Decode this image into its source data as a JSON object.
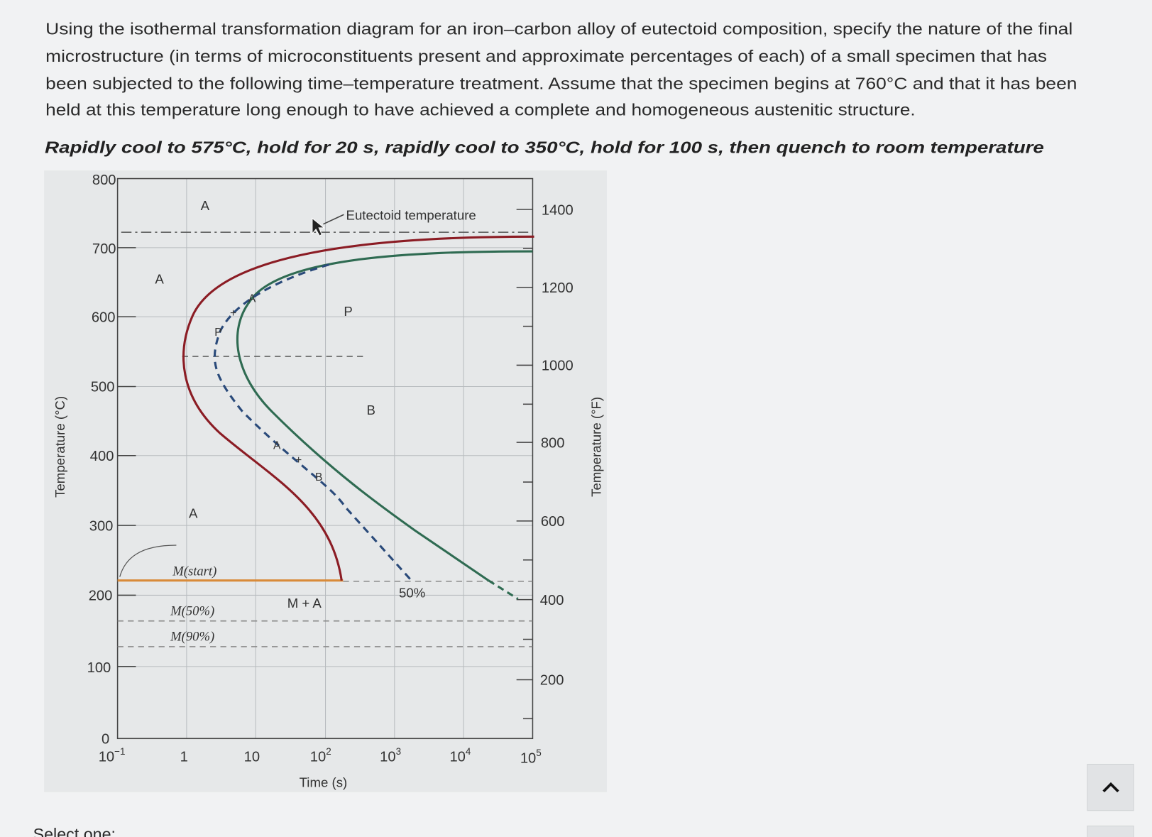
{
  "question_lines": [
    "Using the isothermal transformation diagram for an iron–carbon alloy of eutectoid composition, specify the nature of the final",
    "microstructure (in terms of microconstituents present and approximate percentages of each) of a small specimen that has",
    "been subjected to the following time–temperature treatment. Assume that the specimen begins at 760°C and that it has been",
    "held at this temperature long enough to have achieved a complete and homogeneous austenitic structure."
  ],
  "treatment": "Rapidly cool to 575°C, hold for 20 s, rapidly cool to 350°C, hold for 100 s, then quench to room temperature",
  "diagram": {
    "y_axis_label": "Temperature (°C)",
    "y2_axis_label": "Temperature (°F)",
    "x_axis_label": "Time (s)",
    "y_ticks": [
      "800",
      "700",
      "600",
      "500",
      "400",
      "300",
      "200",
      "100",
      "0"
    ],
    "y2_ticks": [
      "1400",
      "1200",
      "1000",
      "800",
      "600",
      "400",
      "200"
    ],
    "x_ticks": [
      {
        "base": "10",
        "exp": "−1"
      },
      "1",
      "10",
      {
        "base": "10",
        "exp": "2"
      },
      {
        "base": "10",
        "exp": "3"
      },
      {
        "base": "10",
        "exp": "4"
      },
      {
        "base": "10",
        "exp": "5"
      }
    ],
    "eutectoid_label": "Eutectoid temperature",
    "region_labels": [
      "A",
      "A",
      "P",
      "B",
      "A",
      "M + A",
      "50%"
    ],
    "curve_labels": [
      "P",
      "+",
      "A",
      "A",
      "+",
      "B"
    ],
    "m_labels": [
      "M(start)",
      "M(50%)",
      "M(90%)"
    ]
  },
  "footer": "Select one:"
}
